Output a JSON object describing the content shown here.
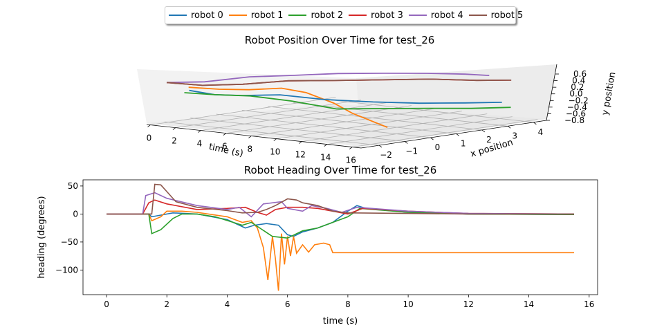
{
  "colors": {
    "robot 0": "#1f77b4",
    "robot 1": "#ff7f0e",
    "robot 2": "#2ca02c",
    "robot 3": "#d62728",
    "robot 4": "#9467bd",
    "robot 5": "#8c564b"
  },
  "legend": [
    "robot 0",
    "robot 1",
    "robot 2",
    "robot 3",
    "robot 4",
    "robot 5"
  ],
  "chart_data": [
    {
      "type": "line3d",
      "title": "Robot Position Over Time for test_26",
      "xlabel": "time (s)",
      "ylabel": "x position",
      "zlabel": "y position",
      "time_ticks": [
        "0",
        "2",
        "4",
        "6",
        "8",
        "10",
        "12",
        "14",
        "16"
      ],
      "x_ticks": [
        "−2",
        "−1",
        "0",
        "1",
        "2",
        "3",
        "4"
      ],
      "y_ticks": [
        "0.6",
        "0.4",
        "0.2",
        "0.0",
        "−0.2",
        "−0.4",
        "−0.6",
        "−0.8"
      ],
      "series": [
        {
          "name": "robot 0",
          "points": [
            [
              0,
              -1.0,
              -0.05
            ],
            [
              2,
              -1.0,
              -0.1
            ],
            [
              4,
              -0.9,
              -0.05
            ],
            [
              6,
              -0.4,
              0.0
            ],
            [
              8,
              0.3,
              -0.15
            ],
            [
              10,
              1.2,
              -0.25
            ],
            [
              12,
              2.0,
              -0.3
            ],
            [
              14,
              2.8,
              -0.3
            ],
            [
              15.5,
              3.5,
              -0.3
            ]
          ]
        },
        {
          "name": "robot 1",
          "points": [
            [
              0,
              -1.0,
              0.05
            ],
            [
              2,
              -0.8,
              0.05
            ],
            [
              4,
              -0.6,
              0.1
            ],
            [
              6,
              -0.3,
              0.2
            ],
            [
              7.5,
              -0.1,
              0.1
            ],
            [
              10,
              -0.3,
              -0.1
            ],
            [
              12,
              -0.6,
              -0.3
            ],
            [
              15.5,
              -1.0,
              -0.55
            ]
          ]
        },
        {
          "name": "robot 2",
          "points": [
            [
              0,
              -1.2,
              -0.1
            ],
            [
              2,
              -1.0,
              -0.1
            ],
            [
              4,
              -0.6,
              -0.1
            ],
            [
              6,
              0.0,
              -0.25
            ],
            [
              8,
              0.7,
              -0.5
            ],
            [
              10,
              1.5,
              -0.5
            ],
            [
              12,
              2.3,
              -0.5
            ],
            [
              14,
              3.0,
              -0.5
            ],
            [
              15.5,
              3.8,
              -0.5
            ]
          ]
        },
        {
          "name": "robot 3",
          "points": [
            [
              0,
              -1.8,
              0.3
            ],
            [
              2,
              -1.4,
              0.25
            ],
            [
              4,
              -0.8,
              0.3
            ],
            [
              6,
              0.0,
              0.4
            ],
            [
              8,
              0.8,
              0.4
            ],
            [
              10,
              1.7,
              0.4
            ],
            [
              12,
              2.6,
              0.4
            ],
            [
              14,
              3.4,
              0.35
            ],
            [
              15.5,
              4.0,
              0.35
            ]
          ]
        },
        {
          "name": "robot 4",
          "points": [
            [
              0,
              -1.8,
              0.3
            ],
            [
              2,
              -1.3,
              0.35
            ],
            [
              4,
              -0.5,
              0.5
            ],
            [
              6,
              0.2,
              0.55
            ],
            [
              8,
              1.0,
              0.6
            ],
            [
              10,
              1.8,
              0.6
            ],
            [
              12,
              2.5,
              0.6
            ],
            [
              14,
              3.0,
              0.6
            ],
            [
              15.5,
              3.2,
              0.6
            ]
          ]
        },
        {
          "name": "robot 5",
          "points": [
            [
              0,
              -1.8,
              0.3
            ],
            [
              2,
              -1.4,
              0.25
            ],
            [
              4,
              -0.8,
              0.3
            ],
            [
              6,
              0.0,
              0.4
            ],
            [
              8,
              0.8,
              0.4
            ],
            [
              10,
              1.7,
              0.4
            ],
            [
              12,
              2.6,
              0.4
            ],
            [
              14,
              3.4,
              0.35
            ],
            [
              15.5,
              4.0,
              0.35
            ]
          ]
        }
      ]
    },
    {
      "type": "line",
      "title": "Robot Heading Over Time for test_26",
      "xlabel": "time (s)",
      "ylabel": "heading (degrees)",
      "xlim": [
        -0.78,
        16.28
      ],
      "ylim": [
        -144,
        61
      ],
      "x_ticks": [
        0,
        2,
        4,
        6,
        8,
        10,
        12,
        14,
        16
      ],
      "y_ticks": [
        50,
        0,
        -50,
        -100
      ],
      "series": [
        {
          "name": "robot 0",
          "points": [
            [
              0,
              0
            ],
            [
              1.4,
              0
            ],
            [
              1.5,
              -5
            ],
            [
              1.8,
              -2
            ],
            [
              2.2,
              2
            ],
            [
              3,
              0
            ],
            [
              4,
              -10
            ],
            [
              4.6,
              -25
            ],
            [
              4.9,
              -20
            ],
            [
              5.3,
              -17
            ],
            [
              5.7,
              -20
            ],
            [
              6.0,
              -37
            ],
            [
              6.2,
              -40
            ],
            [
              6.5,
              -32
            ],
            [
              7,
              -25
            ],
            [
              7.5,
              -15
            ],
            [
              8,
              5
            ],
            [
              8.3,
              15
            ],
            [
              8.6,
              10
            ],
            [
              10,
              3
            ],
            [
              12,
              0
            ],
            [
              15.5,
              -1
            ]
          ]
        },
        {
          "name": "robot 1",
          "points": [
            [
              0,
              0
            ],
            [
              1.4,
              0
            ],
            [
              1.5,
              -12
            ],
            [
              1.8,
              -5
            ],
            [
              2,
              5
            ],
            [
              2.5,
              5
            ],
            [
              3,
              3
            ],
            [
              4,
              -5
            ],
            [
              4.5,
              -15
            ],
            [
              4.8,
              -12
            ],
            [
              5.0,
              -25
            ],
            [
              5.2,
              -60
            ],
            [
              5.35,
              -118
            ],
            [
              5.5,
              -40
            ],
            [
              5.6,
              -80
            ],
            [
              5.7,
              -137
            ],
            [
              5.8,
              -35
            ],
            [
              5.9,
              -90
            ],
            [
              6.0,
              -40
            ],
            [
              6.1,
              -75
            ],
            [
              6.2,
              -40
            ],
            [
              6.3,
              -70
            ],
            [
              6.5,
              -55
            ],
            [
              6.7,
              -68
            ],
            [
              6.9,
              -55
            ],
            [
              7.2,
              -52
            ],
            [
              7.4,
              -55
            ],
            [
              7.5,
              -69
            ],
            [
              10,
              -69
            ],
            [
              12,
              -69
            ],
            [
              15.5,
              -69
            ]
          ]
        },
        {
          "name": "robot 2",
          "points": [
            [
              0,
              0
            ],
            [
              1.4,
              0
            ],
            [
              1.5,
              -35
            ],
            [
              1.8,
              -28
            ],
            [
              2.2,
              -8
            ],
            [
              2.5,
              0
            ],
            [
              3,
              0
            ],
            [
              3.6,
              -5
            ],
            [
              4.2,
              -15
            ],
            [
              4.5,
              -20
            ],
            [
              4.8,
              -15
            ],
            [
              5.5,
              -40
            ],
            [
              6,
              -43
            ],
            [
              6.5,
              -30
            ],
            [
              7,
              -25
            ],
            [
              7.5,
              -15
            ],
            [
              8,
              -5
            ],
            [
              8.4,
              10
            ],
            [
              10,
              3
            ],
            [
              12,
              0
            ],
            [
              15.5,
              -1
            ]
          ]
        },
        {
          "name": "robot 3",
          "points": [
            [
              0,
              0
            ],
            [
              1.2,
              0
            ],
            [
              1.4,
              20
            ],
            [
              1.6,
              25
            ],
            [
              2,
              18
            ],
            [
              3,
              8
            ],
            [
              4,
              10
            ],
            [
              4.6,
              12
            ],
            [
              5,
              3
            ],
            [
              5.3,
              -2
            ],
            [
              5.6,
              8
            ],
            [
              6,
              12
            ],
            [
              6.5,
              12
            ],
            [
              7,
              10
            ],
            [
              7.5,
              5
            ],
            [
              8,
              0
            ],
            [
              8.5,
              10
            ],
            [
              10,
              5
            ],
            [
              12,
              1
            ],
            [
              15.5,
              0
            ]
          ]
        },
        {
          "name": "robot 4",
          "points": [
            [
              0,
              0
            ],
            [
              1.2,
              0
            ],
            [
              1.3,
              33
            ],
            [
              1.6,
              38
            ],
            [
              2,
              28
            ],
            [
              3,
              15
            ],
            [
              4,
              8
            ],
            [
              4.4,
              12
            ],
            [
              4.8,
              -5
            ],
            [
              5.2,
              18
            ],
            [
              5.8,
              22
            ],
            [
              6.0,
              10
            ],
            [
              6.5,
              5
            ],
            [
              6.8,
              15
            ],
            [
              7.3,
              10
            ],
            [
              7.8,
              3
            ],
            [
              8.3,
              12
            ],
            [
              10,
              5
            ],
            [
              12,
              1
            ],
            [
              15.5,
              0
            ]
          ]
        },
        {
          "name": "robot 5",
          "points": [
            [
              0,
              0
            ],
            [
              1.5,
              0
            ],
            [
              1.6,
              53
            ],
            [
              1.8,
              52
            ],
            [
              2,
              40
            ],
            [
              2.3,
              22
            ],
            [
              3,
              12
            ],
            [
              4,
              6
            ],
            [
              4.5,
              2
            ],
            [
              5,
              3
            ],
            [
              5.3,
              8
            ],
            [
              5.6,
              15
            ],
            [
              6,
              27
            ],
            [
              6.3,
              25
            ],
            [
              6.5,
              20
            ],
            [
              7,
              15
            ],
            [
              7.5,
              5
            ],
            [
              8,
              2
            ],
            [
              10,
              1
            ],
            [
              12,
              0
            ],
            [
              15.5,
              0
            ]
          ]
        }
      ]
    }
  ]
}
